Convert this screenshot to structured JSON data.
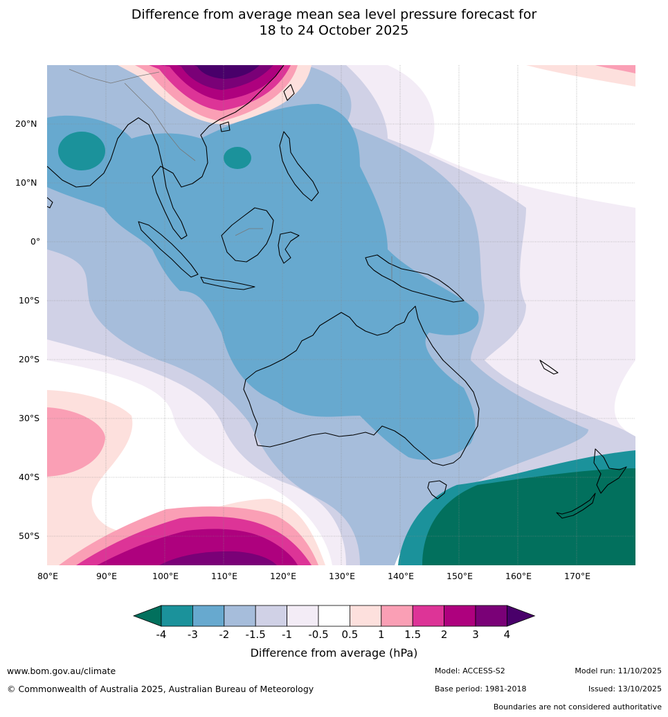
{
  "title": {
    "line1": "Difference from average mean sea level pressure forecast for",
    "line2": "18 to 24 October 2025"
  },
  "latitude_labels": [
    "20°N",
    "10°N",
    "0°",
    "10°S",
    "20°S",
    "30°S",
    "40°S",
    "50°S"
  ],
  "longitude_labels": [
    "80°E",
    "90°E",
    "100°E",
    "110°E",
    "120°E",
    "130°E",
    "140°E",
    "150°E",
    "160°E",
    "170°E"
  ],
  "colorbar": {
    "ticks": [
      "-4",
      "-3",
      "-2",
      "-1.5",
      "-1",
      "-0.5",
      "0.5",
      "1",
      "1.5",
      "2",
      "3",
      "4"
    ],
    "colors": [
      "#02705d",
      "#1b929b",
      "#67a9cf",
      "#a6bddb",
      "#d0d1e6",
      "#f3ecf6",
      "#ffffff",
      "#fde0dd",
      "#fa9fb5",
      "#dd3497",
      "#ae017e",
      "#7a0177",
      "#49006a"
    ],
    "label": "Difference from average (hPa)"
  },
  "footer": {
    "website": "www.bom.gov.au/climate",
    "copyright": "© Commonwealth of Australia 2025, Australian Bureau of Meteorology",
    "model": "Model: ACCESS-S2",
    "base_period": "Base period: 1981-2018",
    "model_run": "Model run: 11/10/2025",
    "issued": "Issued: 13/10/2025",
    "disclaimer": "Boundaries are not considered authoritative"
  }
}
